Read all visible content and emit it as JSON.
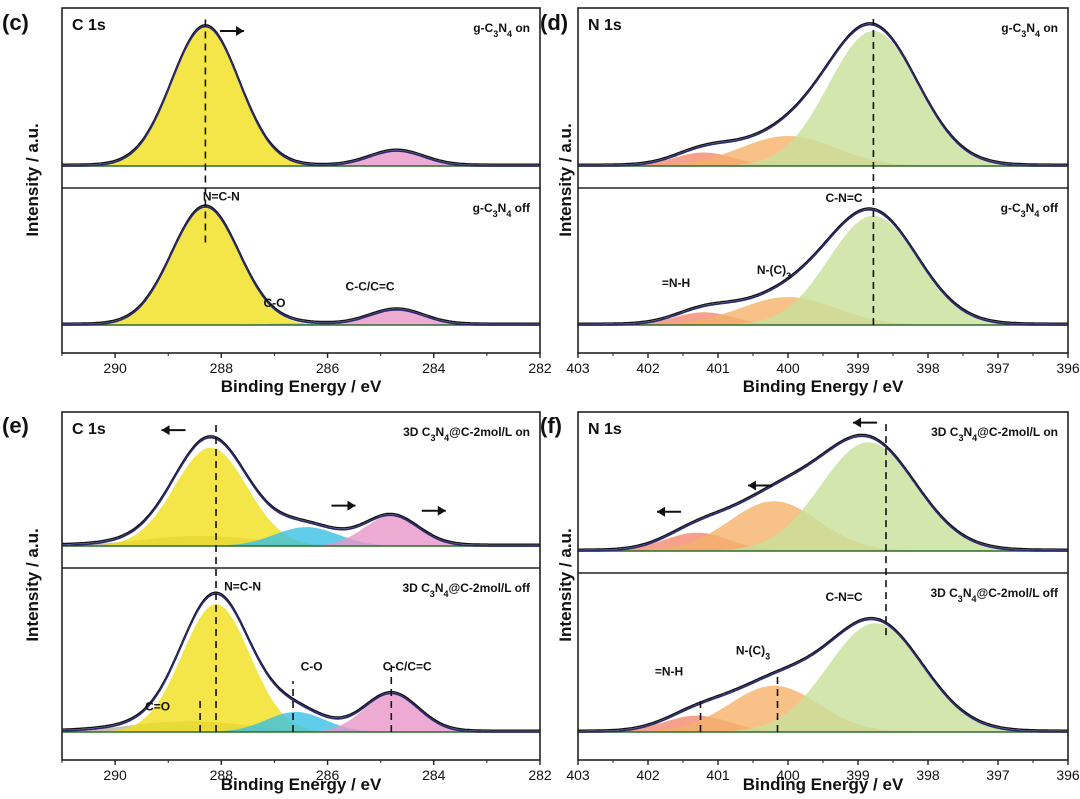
{
  "panels": [
    {
      "id": "c",
      "label": "(c)",
      "title": "C 1s",
      "xlabel": "Binding Energy / eV",
      "ylabel": "Intensity / a.u.",
      "xlim": [
        291,
        282
      ],
      "ticks": [
        290,
        288,
        286,
        284,
        282
      ],
      "top_state": "g-C3N4 on",
      "bottom_state": "g-C3N4 off",
      "arrows": [
        {
          "x": 287.8,
          "dir": "right",
          "y": 0.9,
          "row": "top"
        }
      ],
      "vlines": [
        {
          "x": 288.3,
          "from": "bottom",
          "to": "top",
          "y0": 0.85,
          "y1": 0.98
        }
      ],
      "annotations": [
        {
          "text": "N=C-N",
          "x": 288.0,
          "y": 0.98,
          "row": "bottom"
        },
        {
          "text": "C-O",
          "x": 287.0,
          "y": 0.14,
          "row": "bottom"
        },
        {
          "text": "C-C/C=C",
          "x": 285.2,
          "y": 0.27,
          "row": "bottom"
        }
      ],
      "top": {
        "envelope_scale": 1.0,
        "components": [
          {
            "name": "N=C-N",
            "center": 288.3,
            "fwhm": 1.5,
            "height": 0.93,
            "color": "#f1e01a"
          },
          {
            "name": "C-C/C=C",
            "center": 284.7,
            "fwhm": 1.2,
            "height": 0.1,
            "color": "#e995c8"
          }
        ]
      },
      "bottom": {
        "envelope_scale": 1.0,
        "components": [
          {
            "name": "N=C-N",
            "center": 288.3,
            "fwhm": 1.5,
            "height": 0.93,
            "color": "#f1e01a"
          },
          {
            "name": "C-O",
            "center": 286.6,
            "fwhm": 1.4,
            "height": 0.012,
            "color": "#7fb6e0"
          },
          {
            "name": "C-C/C=C",
            "center": 284.7,
            "fwhm": 1.2,
            "height": 0.12,
            "color": "#e995c8"
          }
        ]
      }
    },
    {
      "id": "d",
      "label": "(d)",
      "title": "N 1s",
      "xlabel": "Binding Energy / eV",
      "ylabel": "Intensity / a.u.",
      "xlim": [
        403,
        396
      ],
      "ticks": [
        403,
        402,
        401,
        400,
        399,
        398,
        397,
        396
      ],
      "top_state": "g-C3N4 on",
      "bottom_state": "g-C3N4 off",
      "arrows": [],
      "vlines": [
        {
          "x": 398.78,
          "from": "bottom",
          "to": "top",
          "y0": 0.0,
          "y1": 0.98
        }
      ],
      "annotations": [
        {
          "text": "=N-H",
          "x": 401.6,
          "y": 0.3,
          "row": "bottom"
        },
        {
          "text": "N-(C)3",
          "x": 400.2,
          "y": 0.4,
          "row": "bottom"
        },
        {
          "text": "C-N=C",
          "x": 399.2,
          "y": 0.97,
          "row": "bottom"
        }
      ],
      "top": {
        "envelope_scale": 1.0,
        "components": [
          {
            "name": "=N-H",
            "center": 401.2,
            "fwhm": 1.0,
            "height": 0.09,
            "color": "#f28a6e"
          },
          {
            "name": "N-(C)3",
            "center": 400.0,
            "fwhm": 1.6,
            "height": 0.2,
            "color": "#f5b26a"
          },
          {
            "name": "C-N=C",
            "center": 398.78,
            "fwhm": 1.5,
            "height": 0.9,
            "color": "#c7e09a"
          }
        ]
      },
      "bottom": {
        "envelope_scale": 1.0,
        "components": [
          {
            "name": "=N-H",
            "center": 401.2,
            "fwhm": 1.0,
            "height": 0.1,
            "color": "#f28a6e"
          },
          {
            "name": "N-(C)3",
            "center": 400.0,
            "fwhm": 1.6,
            "height": 0.22,
            "color": "#f5b26a"
          },
          {
            "name": "C-N=C",
            "center": 398.78,
            "fwhm": 1.5,
            "height": 0.86,
            "color": "#c7e09a"
          }
        ]
      }
    },
    {
      "id": "e",
      "label": "(e)",
      "title": "C 1s",
      "xlabel": "Binding Energy / eV",
      "ylabel": "Intensity / a.u.",
      "xlim": [
        291,
        282
      ],
      "ticks": [
        290,
        288,
        286,
        284,
        282
      ],
      "top_state": "3D C3N4@C-2mol/L  on",
      "bottom_state": "3D C3N4@C-2mol/L  off",
      "arrows": [
        {
          "x": 288.9,
          "dir": "left",
          "y": 0.92,
          "row": "top"
        },
        {
          "x": 285.7,
          "dir": "right",
          "y": 0.32,
          "row": "top"
        },
        {
          "x": 284.0,
          "dir": "right",
          "y": 0.28,
          "row": "top"
        }
      ],
      "vlines": [
        {
          "x": 288.1,
          "from": "bottom",
          "to": "top",
          "y0": 0.0,
          "y1": 0.98
        },
        {
          "x": 288.4,
          "from": "bottom",
          "to": "top",
          "y0": 0.0,
          "y1": 0.22
        },
        {
          "x": 286.65,
          "from": "bottom",
          "to": "top",
          "y0": 0.0,
          "y1": 0.33
        },
        {
          "x": 284.8,
          "from": "bottom",
          "to": "top",
          "y0": 0.0,
          "y1": 0.45
        }
      ],
      "annotations": [
        {
          "text": "N=C-N",
          "x": 287.6,
          "y": 0.92,
          "row": "bottom"
        },
        {
          "text": "C-O",
          "x": 286.3,
          "y": 0.4,
          "row": "bottom"
        },
        {
          "text": "C-C/C=C",
          "x": 284.5,
          "y": 0.4,
          "row": "bottom"
        },
        {
          "text": "C=O",
          "x": 289.2,
          "y": 0.14,
          "row": "bottom"
        }
      ],
      "top": {
        "envelope_scale": 1.0,
        "components": [
          {
            "name": "C=O",
            "center": 288.4,
            "fwhm": 2.6,
            "height": 0.08,
            "color": "#b9b39c"
          },
          {
            "name": "N=C-N",
            "center": 288.2,
            "fwhm": 1.6,
            "height": 0.78,
            "color": "#f1e01a"
          },
          {
            "name": "C-O",
            "center": 286.4,
            "fwhm": 1.4,
            "height": 0.15,
            "color": "#39c1e5"
          },
          {
            "name": "C-C/C=C",
            "center": 284.8,
            "fwhm": 1.2,
            "height": 0.24,
            "color": "#e995c8"
          }
        ]
      },
      "bottom": {
        "envelope_scale": 1.0,
        "components": [
          {
            "name": "C=O",
            "center": 288.6,
            "fwhm": 2.6,
            "height": 0.07,
            "color": "#b9b39c"
          },
          {
            "name": "N=C-N",
            "center": 288.1,
            "fwhm": 1.5,
            "height": 0.83,
            "color": "#f1e01a"
          },
          {
            "name": "C-O",
            "center": 286.6,
            "fwhm": 1.3,
            "height": 0.13,
            "color": "#39c1e5"
          },
          {
            "name": "C-C/C=C",
            "center": 284.8,
            "fwhm": 1.2,
            "height": 0.25,
            "color": "#e995c8"
          }
        ]
      }
    },
    {
      "id": "f",
      "label": "(f)",
      "title": "N 1s",
      "xlabel": "Binding Energy / eV",
      "ylabel": "Intensity / a.u.",
      "xlim": [
        403,
        396
      ],
      "ticks": [
        403,
        402,
        401,
        400,
        399,
        398,
        397,
        396
      ],
      "top_state": "3D C3N4@C-2mol/L on",
      "bottom_state": "3D C3N4@C-2mol/L off",
      "arrows": [
        {
          "x": 398.9,
          "dir": "left",
          "y": 0.98,
          "row": "top"
        },
        {
          "x": 400.4,
          "dir": "left",
          "y": 0.5,
          "row": "top"
        },
        {
          "x": 401.7,
          "dir": "left",
          "y": 0.3,
          "row": "top"
        }
      ],
      "vlines": [
        {
          "x": 398.6,
          "from": "bottom",
          "to": "top",
          "y0": 0.75,
          "y1": 0.98
        },
        {
          "x": 400.15,
          "from": "bottom",
          "to": "top",
          "y0": 0.0,
          "y1": 0.4
        },
        {
          "x": 401.25,
          "from": "bottom",
          "to": "top",
          "y0": 0.0,
          "y1": 0.22
        }
      ],
      "annotations": [
        {
          "text": "=N-H",
          "x": 401.7,
          "y": 0.38,
          "row": "bottom"
        },
        {
          "text": "N-(C)3",
          "x": 400.5,
          "y": 0.52,
          "row": "bottom"
        },
        {
          "text": "C-N=C",
          "x": 399.2,
          "y": 0.88,
          "row": "bottom"
        }
      ],
      "top": {
        "envelope_scale": 1.0,
        "components": [
          {
            "name": "=N-H",
            "center": 401.3,
            "fwhm": 1.1,
            "height": 0.14,
            "color": "#f28a6e"
          },
          {
            "name": "N-(C)3",
            "center": 400.2,
            "fwhm": 1.5,
            "height": 0.38,
            "color": "#f5b26a"
          },
          {
            "name": "C-N=C",
            "center": 398.85,
            "fwhm": 1.6,
            "height": 0.83,
            "color": "#c7e09a"
          }
        ]
      },
      "bottom": {
        "envelope_scale": 1.0,
        "components": [
          {
            "name": "=N-H",
            "center": 401.3,
            "fwhm": 1.1,
            "height": 0.11,
            "color": "#f28a6e"
          },
          {
            "name": "N-(C)3",
            "center": 400.2,
            "fwhm": 1.5,
            "height": 0.31,
            "color": "#f5b26a"
          },
          {
            "name": "C-N=C",
            "center": 398.75,
            "fwhm": 1.6,
            "height": 0.73,
            "color": "#c7e09a"
          }
        ]
      }
    }
  ],
  "chart_data": [
    {
      "type": "line",
      "panel": "(c)",
      "title": "C 1s",
      "xlabel": "Binding Energy / eV",
      "ylabel": "Intensity / a.u.",
      "xlim": [
        291,
        282
      ],
      "x_reversed": true,
      "series": [
        {
          "name": "g-C3N4 on",
          "peaks": [
            {
              "label": "N=C-N",
              "center_eV": 288.3
            },
            {
              "label": "C-C/C=C",
              "center_eV": 284.7
            }
          ]
        },
        {
          "name": "g-C3N4 off",
          "peaks": [
            {
              "label": "N=C-N",
              "center_eV": 288.3
            },
            {
              "label": "C-O",
              "center_eV": 286.6
            },
            {
              "label": "C-C/C=C",
              "center_eV": 284.7
            }
          ]
        }
      ]
    },
    {
      "type": "line",
      "panel": "(d)",
      "title": "N 1s",
      "xlabel": "Binding Energy / eV",
      "ylabel": "Intensity / a.u.",
      "xlim": [
        403,
        396
      ],
      "x_reversed": true,
      "series": [
        {
          "name": "g-C3N4 on",
          "peaks": [
            {
              "label": "=N-H",
              "center_eV": 401.2
            },
            {
              "label": "N-(C)3",
              "center_eV": 400.0
            },
            {
              "label": "C-N=C",
              "center_eV": 398.78
            }
          ]
        },
        {
          "name": "g-C3N4 off",
          "peaks": [
            {
              "label": "=N-H",
              "center_eV": 401.2
            },
            {
              "label": "N-(C)3",
              "center_eV": 400.0
            },
            {
              "label": "C-N=C",
              "center_eV": 398.78
            }
          ]
        }
      ]
    },
    {
      "type": "line",
      "panel": "(e)",
      "title": "C 1s",
      "xlabel": "Binding Energy / eV",
      "ylabel": "Intensity / a.u.",
      "xlim": [
        291,
        282
      ],
      "x_reversed": true,
      "series": [
        {
          "name": "3D C3N4@C-2mol/L on",
          "peaks": [
            {
              "label": "C=O",
              "center_eV": 288.4
            },
            {
              "label": "N=C-N",
              "center_eV": 288.2
            },
            {
              "label": "C-O",
              "center_eV": 286.4
            },
            {
              "label": "C-C/C=C",
              "center_eV": 284.8
            }
          ]
        },
        {
          "name": "3D C3N4@C-2mol/L off",
          "peaks": [
            {
              "label": "C=O",
              "center_eV": 288.6
            },
            {
              "label": "N=C-N",
              "center_eV": 288.1
            },
            {
              "label": "C-O",
              "center_eV": 286.6
            },
            {
              "label": "C-C/C=C",
              "center_eV": 284.8
            }
          ]
        }
      ]
    },
    {
      "type": "line",
      "panel": "(f)",
      "title": "N 1s",
      "xlabel": "Binding Energy / eV",
      "ylabel": "Intensity / a.u.",
      "xlim": [
        403,
        396
      ],
      "x_reversed": true,
      "series": [
        {
          "name": "3D C3N4@C-2mol/L on",
          "peaks": [
            {
              "label": "=N-H",
              "center_eV": 401.3
            },
            {
              "label": "N-(C)3",
              "center_eV": 400.2
            },
            {
              "label": "C-N=C",
              "center_eV": 398.85
            }
          ]
        },
        {
          "name": "3D C3N4@C-2mol/L off",
          "peaks": [
            {
              "label": "=N-H",
              "center_eV": 401.3
            },
            {
              "label": "N-(C)3",
              "center_eV": 400.2
            },
            {
              "label": "C-N=C",
              "center_eV": 398.75
            }
          ]
        }
      ]
    }
  ]
}
